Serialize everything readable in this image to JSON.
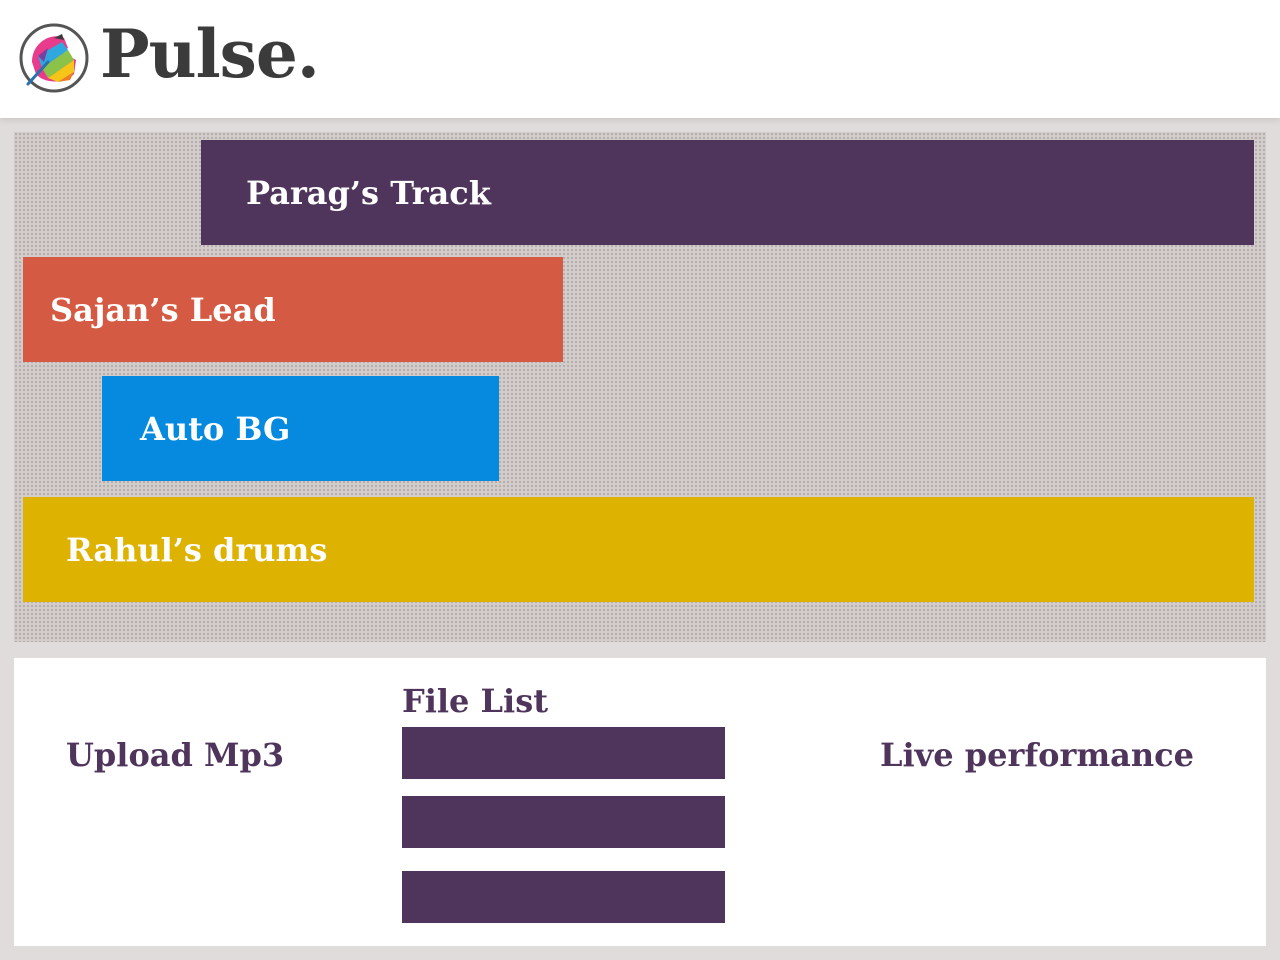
{
  "app": {
    "name": "Pulse.",
    "logo_icon": "pulse-logo-icon"
  },
  "tracks": [
    {
      "label": "Parag’s Track",
      "color": "#4f345c"
    },
    {
      "label": "Sajan’s Lead",
      "color": "#d55a43"
    },
    {
      "label": "Auto BG",
      "color": "#068ae0"
    },
    {
      "label": "Rahul’s drums",
      "color": "#ddb200"
    }
  ],
  "controls": {
    "upload_label": "Upload Mp3",
    "file_list_title": "File List",
    "file_items_count": 3,
    "file_item_color": "#4f345c",
    "live_label": "Live performance"
  },
  "colors": {
    "brand_text": "#3b3b3b",
    "accent_purple": "#4f345c",
    "page_background": "#e0dcdb",
    "tracks_background": "#d2cccb"
  }
}
